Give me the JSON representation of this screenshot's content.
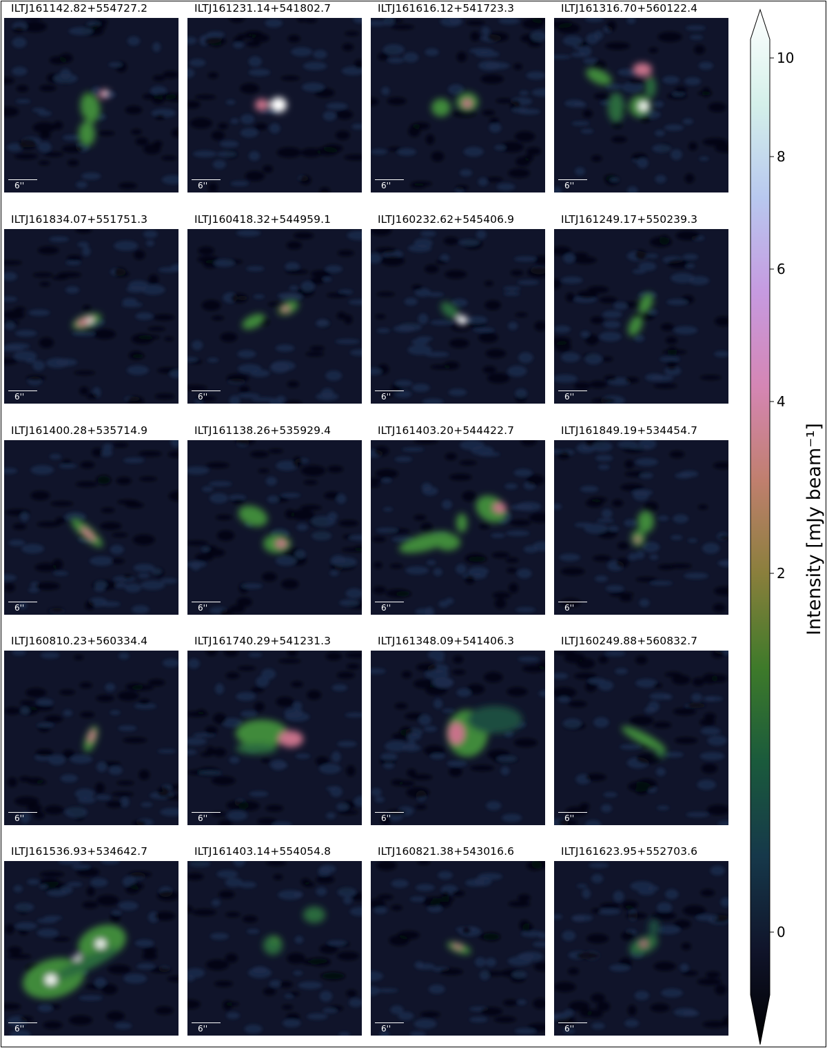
{
  "figure": {
    "colormap": "cubehelix",
    "background_noise_color": "#10142a",
    "scalebar_color": "#ffffff"
  },
  "panels": [
    {
      "title": "ILTJ161142.82+554727.2",
      "scalebar_label": "6''"
    },
    {
      "title": "ILTJ161231.14+541802.7",
      "scalebar_label": "6''"
    },
    {
      "title": "ILTJ161616.12+541723.3",
      "scalebar_label": "6''"
    },
    {
      "title": "ILTJ161316.70+560122.4",
      "scalebar_label": "6''"
    },
    {
      "title": "ILTJ161834.07+551751.3",
      "scalebar_label": "6''"
    },
    {
      "title": "ILTJ160418.32+544959.1",
      "scalebar_label": "6''"
    },
    {
      "title": "ILTJ160232.62+545406.9",
      "scalebar_label": "6''"
    },
    {
      "title": "ILTJ161249.17+550239.3",
      "scalebar_label": "6''"
    },
    {
      "title": "ILTJ161400.28+535714.9",
      "scalebar_label": "6''"
    },
    {
      "title": "ILTJ161138.26+535929.4",
      "scalebar_label": "6''"
    },
    {
      "title": "ILTJ161403.20+544422.7",
      "scalebar_label": "6''"
    },
    {
      "title": "ILTJ161849.19+534454.7",
      "scalebar_label": "6''"
    },
    {
      "title": "ILTJ160810.23+560334.4",
      "scalebar_label": "6''"
    },
    {
      "title": "ILTJ161740.29+541231.3",
      "scalebar_label": "6''"
    },
    {
      "title": "ILTJ161348.09+541406.3",
      "scalebar_label": "6''"
    },
    {
      "title": "ILTJ160249.88+560832.7",
      "scalebar_label": "6''"
    },
    {
      "title": "ILTJ161536.93+534642.7",
      "scalebar_label": "6''"
    },
    {
      "title": "ILTJ161403.14+554054.8",
      "scalebar_label": "6''"
    },
    {
      "title": "ILTJ160821.38+543016.6",
      "scalebar_label": "6''"
    },
    {
      "title": "ILTJ161623.95+552703.6",
      "scalebar_label": "6''"
    }
  ],
  "colorbar": {
    "label": "Intensity [mJy beam⁻¹]",
    "ticks": [
      0,
      2,
      4,
      6,
      8,
      10
    ],
    "tick_labels": [
      "0",
      "2",
      "4",
      "6",
      "8",
      "10"
    ],
    "range": [
      -0.6,
      10
    ],
    "extend": "both",
    "gradient_stops": [
      "#000000",
      "#10142a",
      "#16384a",
      "#1a5a3c",
      "#3e7a2a",
      "#8a7f3c",
      "#c07f6e",
      "#d586b4",
      "#c69ae0",
      "#b8c8ef",
      "#d4f0ea",
      "#ffffff"
    ]
  }
}
